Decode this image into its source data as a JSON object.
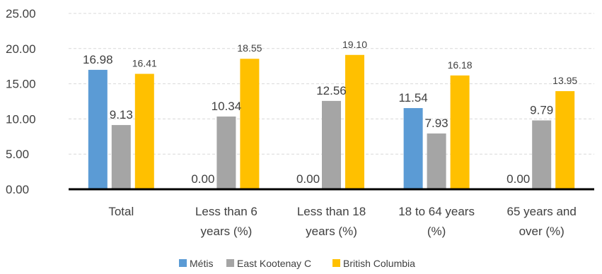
{
  "chart_data": {
    "type": "bar",
    "title": "",
    "xlabel": "",
    "ylabel": "",
    "ylim": [
      0,
      25
    ],
    "yticks": [
      "0.00",
      "5.00",
      "10.00",
      "15.00",
      "20.00",
      "25.00"
    ],
    "grid": "horizontal dashed",
    "legend_position": "bottom",
    "categories": [
      [
        "Total"
      ],
      [
        "Less than 6",
        "years (%)"
      ],
      [
        "Less than 18",
        "years (%)"
      ],
      [
        "18 to 64 years",
        "(%)"
      ],
      [
        "65 years and",
        "over (%)"
      ]
    ],
    "series": [
      {
        "name": "Métis",
        "color": "#5B9BD5",
        "values": [
          16.98,
          0.0,
          0.0,
          11.54,
          0.0
        ],
        "labels": [
          "16.98",
          "0.00",
          "0.00",
          "11.54",
          "0.00"
        ],
        "label_sizes": [
          "large",
          "large",
          "large",
          "large",
          "large"
        ]
      },
      {
        "name": "East Kootenay C",
        "color": "#A5A5A5",
        "values": [
          9.13,
          10.34,
          12.56,
          7.93,
          9.79
        ],
        "labels": [
          "9.13",
          "10.34",
          "12.56",
          "7.93",
          "9.79"
        ],
        "label_sizes": [
          "large",
          "large",
          "large",
          "large",
          "large"
        ]
      },
      {
        "name": "British Columbia",
        "color": "#FFC000",
        "values": [
          16.41,
          18.55,
          19.1,
          16.18,
          13.95
        ],
        "labels": [
          "16.41",
          "18.55",
          "19.10",
          "16.18",
          "13.95"
        ],
        "label_sizes": [
          "small",
          "small",
          "small",
          "small",
          "small"
        ]
      }
    ]
  }
}
